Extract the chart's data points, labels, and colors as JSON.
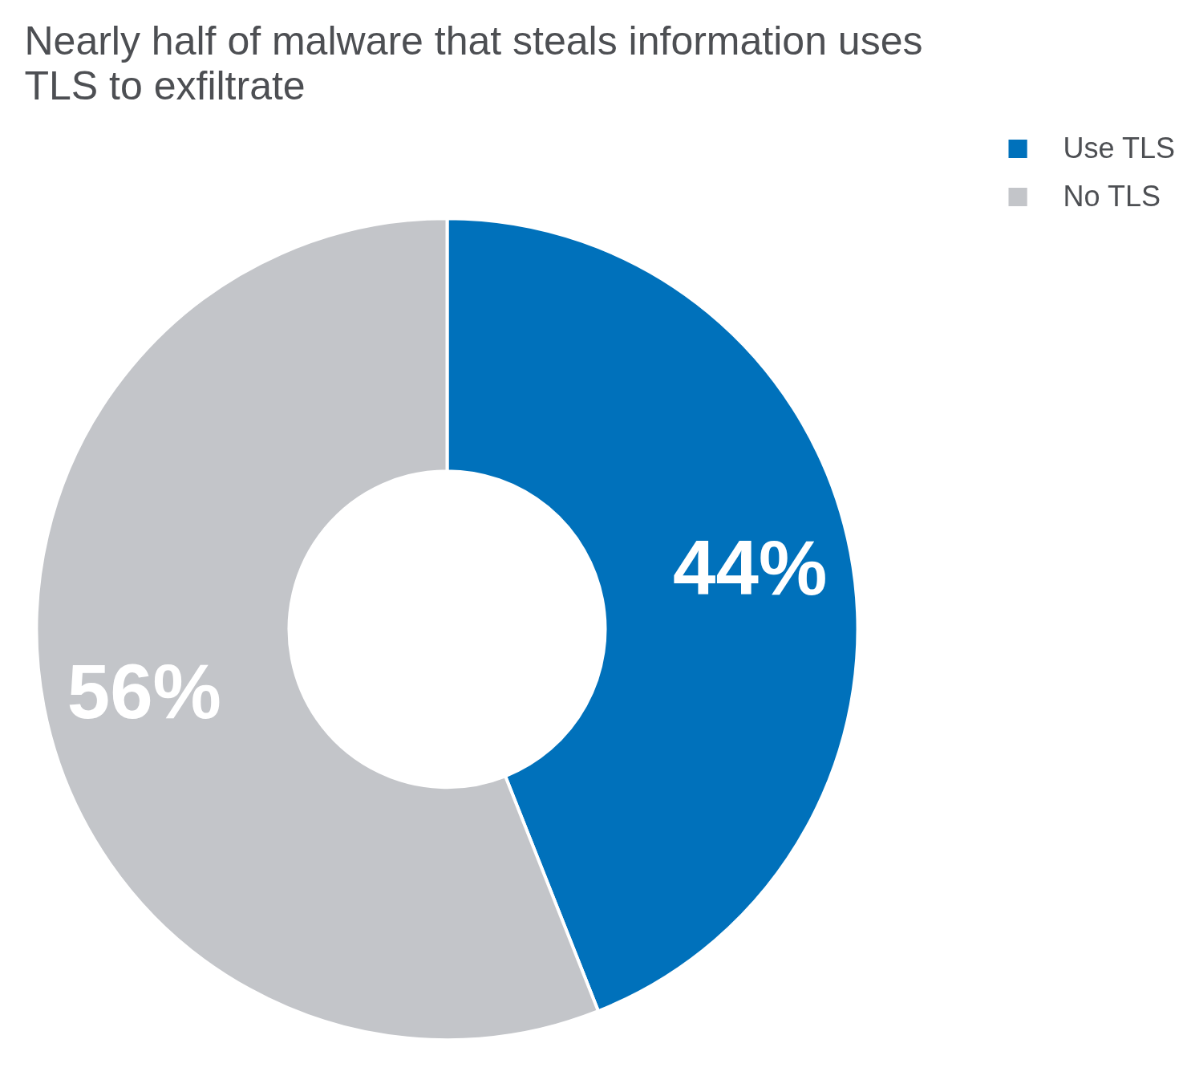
{
  "chart_data": {
    "type": "donut",
    "title": "Nearly half of malware that steals information uses\nTLS to exfiltrate",
    "categories": [
      "Use TLS",
      "No TLS"
    ],
    "values": [
      44,
      56
    ],
    "colors": [
      "#0071bb",
      "#c3c5c9"
    ],
    "value_labels": [
      "44%",
      "56%"
    ],
    "legend": "top right"
  }
}
